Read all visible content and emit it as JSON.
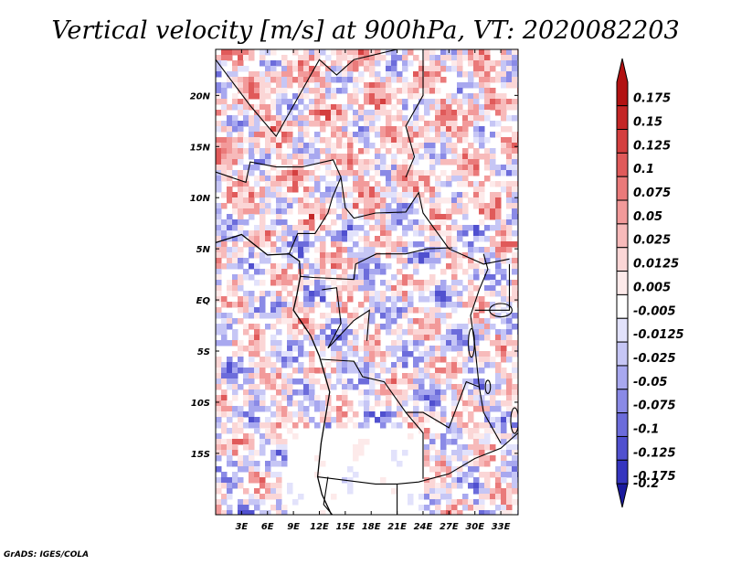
{
  "title": "Vertical velocity [m/s] at 900hPa, VT: 2020082203",
  "footer": "GrADS: IGES/COLA",
  "colors": {
    "positive_max": "#b21212",
    "negative_max": "#1a1a9e",
    "neutral": "#ffffff",
    "boundary": "#000000"
  },
  "chart_data": {
    "type": "heatmap",
    "title": "Vertical velocity [m/s] at 900hPa, VT: 2020082203",
    "variable": "Vertical velocity",
    "units": "m/s",
    "level": "900hPa",
    "valid_time": "2020082203",
    "lon_range": [
      0,
      35
    ],
    "lat_range": [
      -21,
      24.5
    ],
    "x_ticks": [
      {
        "value": 3,
        "label": "3E"
      },
      {
        "value": 6,
        "label": "6E"
      },
      {
        "value": 9,
        "label": "9E"
      },
      {
        "value": 12,
        "label": "12E"
      },
      {
        "value": 15,
        "label": "15E"
      },
      {
        "value": 18,
        "label": "18E"
      },
      {
        "value": 21,
        "label": "21E"
      },
      {
        "value": 24,
        "label": "24E"
      },
      {
        "value": 27,
        "label": "27E"
      },
      {
        "value": 30,
        "label": "30E"
      },
      {
        "value": 33,
        "label": "33E"
      }
    ],
    "y_ticks": [
      {
        "value": 20,
        "label": "20N"
      },
      {
        "value": 15,
        "label": "15N"
      },
      {
        "value": 10,
        "label": "10N"
      },
      {
        "value": 5,
        "label": "5N"
      },
      {
        "value": 0,
        "label": "EQ"
      },
      {
        "value": -5,
        "label": "5S"
      },
      {
        "value": -10,
        "label": "10S"
      },
      {
        "value": -15,
        "label": "15S"
      }
    ],
    "colorbar": [
      {
        "label": "0.175",
        "color": "#b21212"
      },
      {
        "label": "0.15",
        "color": "#c42626"
      },
      {
        "label": "0.125",
        "color": "#d43f3f"
      },
      {
        "label": "0.1",
        "color": "#e05a5a"
      },
      {
        "label": "0.075",
        "color": "#ea7a7a"
      },
      {
        "label": "0.05",
        "color": "#f29a9a"
      },
      {
        "label": "0.025",
        "color": "#f7baba"
      },
      {
        "label": "0.0125",
        "color": "#fbd6d6"
      },
      {
        "label": "0.005",
        "color": "#fdeaea"
      },
      {
        "label": "-0.005",
        "color": "#ffffff"
      },
      {
        "label": "-0.0125",
        "color": "#e2e2fb"
      },
      {
        "label": "-0.025",
        "color": "#c6c6f5"
      },
      {
        "label": "-0.05",
        "color": "#a8a8ef"
      },
      {
        "label": "-0.075",
        "color": "#8a8ae6"
      },
      {
        "label": "-0.1",
        "color": "#6c6cdb"
      },
      {
        "label": "-0.125",
        "color": "#5050cf"
      },
      {
        "label": "-0.175",
        "color": "#3535bf"
      },
      {
        "label": "-0.2",
        "color": "#1a1a9e"
      }
    ]
  }
}
